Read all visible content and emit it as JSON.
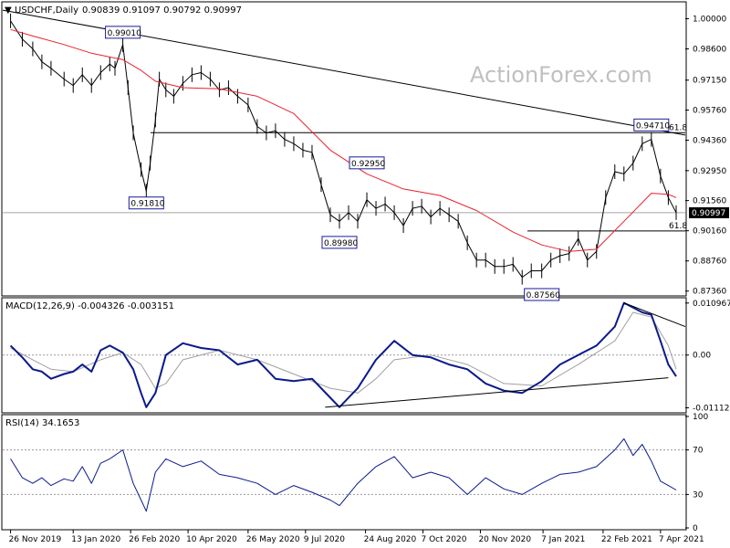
{
  "header": {
    "symbol": "USDCHF,Daily",
    "ohlc": "0.90839 0.91097 0.90792 0.90997"
  },
  "watermark": "ActionForex.com",
  "colors": {
    "price": "#000000",
    "ma": "#e8212e",
    "macd": "#0a1a8c",
    "signal": "#a0a0a0",
    "label_box": "#1a1a9c",
    "grid_dash": "#999999",
    "current_price_bg": "#000000",
    "current_price_fg": "#ffffff"
  },
  "chart_data": [
    {
      "type": "line",
      "name": "price-panel",
      "yticks": [
        "1.00000",
        "0.98600",
        "0.97150",
        "0.95760",
        "0.94360",
        "0.92950",
        "0.91560",
        "0.90160",
        "0.88760",
        "0.87360"
      ],
      "ylim": [
        0.8722,
        1.007
      ],
      "current_price": "0.90997",
      "xticks": [
        "26 Nov 2019",
        "13 Jan 2020",
        "26 Feb 2020",
        "10 Apr 2020",
        "26 May 2020",
        "9 Jul 2020",
        "24 Aug 2020",
        "7 Oct 2020",
        "20 Nov 2020",
        "7 Jan 2021",
        "22 Feb 2021",
        "7 Apr 2021"
      ],
      "annotations": [
        {
          "label": "0.99010",
          "date": "2020-02-20",
          "value": 0.9901
        },
        {
          "label": "0.91810",
          "date": "2020-03-09",
          "value": 0.9181
        },
        {
          "label": "0.89980",
          "date": "2020-08-04",
          "value": 0.8998
        },
        {
          "label": "0.92950",
          "date": "2020-08-25",
          "value": 0.9295
        },
        {
          "label": "0.87560",
          "date": "2021-01-06",
          "value": 0.8756
        },
        {
          "label": "0.94710",
          "date": "2021-03-31",
          "value": 0.9471
        }
      ],
      "fib_labels": [
        "61.8",
        "61.8"
      ],
      "series": [
        {
          "dates": [
            "2019-11-26",
            "2019-12-05",
            "2019-12-13",
            "2019-12-20",
            "2019-12-27",
            "2020-01-06",
            "2020-01-13",
            "2020-01-20",
            "2020-01-27",
            "2020-02-03",
            "2020-02-10",
            "2020-02-14",
            "2020-02-20",
            "2020-02-24",
            "2020-02-28",
            "2020-03-05",
            "2020-03-09",
            "2020-03-12",
            "2020-03-16",
            "2020-03-19",
            "2020-03-24",
            "2020-03-30",
            "2020-04-06",
            "2020-04-13",
            "2020-04-20",
            "2020-04-27",
            "2020-05-04",
            "2020-05-11",
            "2020-05-18",
            "2020-05-26",
            "2020-06-02",
            "2020-06-09",
            "2020-06-16",
            "2020-06-23",
            "2020-06-30",
            "2020-07-07",
            "2020-07-14",
            "2020-07-21",
            "2020-07-28",
            "2020-08-04",
            "2020-08-11",
            "2020-08-18",
            "2020-08-25",
            "2020-09-01",
            "2020-09-08",
            "2020-09-15",
            "2020-09-22",
            "2020-09-29",
            "2020-10-06",
            "2020-10-13",
            "2020-10-20",
            "2020-10-27",
            "2020-11-03",
            "2020-11-10",
            "2020-11-17",
            "2020-11-24",
            "2020-12-01",
            "2020-12-08",
            "2020-12-15",
            "2020-12-22",
            "2020-12-29",
            "2021-01-06",
            "2021-01-13",
            "2021-01-20",
            "2021-01-27",
            "2021-02-03",
            "2021-02-10",
            "2021-02-17",
            "2021-02-24",
            "2021-03-03",
            "2021-03-10",
            "2021-03-17",
            "2021-03-24",
            "2021-03-31",
            "2021-04-07",
            "2021-04-13",
            "2021-04-19"
          ],
          "values": [
            0.999,
            0.9905,
            0.986,
            0.98,
            0.977,
            0.972,
            0.969,
            0.974,
            0.969,
            0.975,
            0.979,
            0.977,
            0.988,
            0.968,
            0.947,
            0.93,
            0.92,
            0.933,
            0.953,
            0.972,
            0.967,
            0.964,
            0.97,
            0.974,
            0.975,
            0.972,
            0.967,
            0.968,
            0.964,
            0.96,
            0.95,
            0.947,
            0.948,
            0.944,
            0.942,
            0.939,
            0.938,
            0.923,
            0.909,
            0.906,
            0.91,
            0.906,
            0.916,
            0.912,
            0.914,
            0.91,
            0.904,
            0.912,
            0.913,
            0.908,
            0.912,
            0.909,
            0.906,
            0.896,
            0.888,
            0.888,
            0.885,
            0.885,
            0.886,
            0.88,
            0.883,
            0.883,
            0.888,
            0.89,
            0.891,
            0.898,
            0.888,
            0.892,
            0.917,
            0.929,
            0.928,
            0.933,
            0.942,
            0.944,
            0.927,
            0.917,
            0.91
          ]
        },
        {
          "name": "",
          "dates": [
            "2019-11-26",
            "2019-12-13",
            "2020-01-06",
            "2020-01-27",
            "2020-02-20",
            "2020-03-05",
            "2020-03-16",
            "2020-04-06",
            "2020-05-04",
            "2020-06-02",
            "2020-06-30",
            "2020-07-28",
            "2020-08-25",
            "2020-09-22",
            "2020-10-20",
            "2020-11-17",
            "2020-12-15",
            "2021-01-06",
            "2021-01-27",
            "2021-02-17",
            "2021-03-10",
            "2021-03-31",
            "2021-04-13",
            "2021-04-19"
          ],
          "values": [
            0.995,
            0.992,
            0.988,
            0.984,
            0.981,
            0.976,
            0.971,
            0.968,
            0.9675,
            0.964,
            0.956,
            0.939,
            0.928,
            0.921,
            0.918,
            0.911,
            0.901,
            0.895,
            0.892,
            0.893,
            0.906,
            0.919,
            0.9185,
            0.917
          ]
        }
      ]
    },
    {
      "type": "line",
      "name": "macd-panel",
      "title": "MACD(12,26,9) -0.004326 -0.003151",
      "yticks": [
        "0.010967",
        "0.00",
        "-0.011127"
      ],
      "ylim": [
        -0.0118,
        0.0117
      ],
      "series": [
        {
          "dates": [
            "2019-11-26",
            "2019-12-05",
            "2019-12-13",
            "2019-12-20",
            "2019-12-27",
            "2020-01-06",
            "2020-01-13",
            "2020-01-20",
            "2020-01-27",
            "2020-02-03",
            "2020-02-10",
            "2020-02-20",
            "2020-02-28",
            "2020-03-05",
            "2020-03-09",
            "2020-03-16",
            "2020-03-24",
            "2020-04-06",
            "2020-04-20",
            "2020-05-04",
            "2020-05-18",
            "2020-06-02",
            "2020-06-16",
            "2020-06-30",
            "2020-07-14",
            "2020-07-28",
            "2020-08-04",
            "2020-08-18",
            "2020-09-01",
            "2020-09-15",
            "2020-09-29",
            "2020-10-13",
            "2020-10-27",
            "2020-11-10",
            "2020-11-24",
            "2020-12-08",
            "2020-12-22",
            "2021-01-06",
            "2021-01-20",
            "2021-02-03",
            "2021-02-17",
            "2021-03-03",
            "2021-03-10",
            "2021-03-17",
            "2021-03-24",
            "2021-03-31",
            "2021-04-07",
            "2021-04-13",
            "2021-04-19"
          ],
          "values": [
            0.002,
            -0.0005,
            -0.003,
            -0.0035,
            -0.005,
            -0.004,
            -0.0035,
            -0.002,
            -0.0035,
            0.001,
            0.002,
            0.0005,
            -0.003,
            -0.008,
            -0.011,
            -0.008,
            0.0,
            0.0025,
            0.0015,
            0.001,
            -0.002,
            -0.001,
            -0.005,
            -0.0055,
            -0.005,
            -0.009,
            -0.011,
            -0.007,
            -0.001,
            0.003,
            0.0,
            -0.0005,
            -0.002,
            -0.003,
            -0.006,
            -0.0075,
            -0.008,
            -0.0055,
            -0.002,
            0.0,
            0.002,
            0.006,
            0.011,
            0.01,
            0.009,
            0.0085,
            0.003,
            -0.002,
            -0.0045
          ]
        },
        {
          "name": "",
          "dates": [
            "2019-11-26",
            "2019-12-13",
            "2019-12-27",
            "2020-01-13",
            "2020-02-03",
            "2020-02-20",
            "2020-03-05",
            "2020-03-16",
            "2020-03-24",
            "2020-04-06",
            "2020-05-04",
            "2020-06-02",
            "2020-06-30",
            "2020-07-28",
            "2020-08-18",
            "2020-09-01",
            "2020-09-15",
            "2020-10-13",
            "2020-11-10",
            "2020-12-08",
            "2021-01-06",
            "2021-02-03",
            "2021-03-03",
            "2021-03-17",
            "2021-03-31",
            "2021-04-13",
            "2021-04-19"
          ],
          "values": [
            0.0015,
            -0.001,
            -0.003,
            -0.0035,
            -0.001,
            0.0005,
            -0.002,
            -0.007,
            -0.006,
            -0.001,
            0.001,
            -0.001,
            -0.004,
            -0.007,
            -0.008,
            -0.005,
            -0.001,
            0.0,
            -0.002,
            -0.006,
            -0.0065,
            -0.002,
            0.003,
            0.009,
            0.008,
            0.002,
            -0.003
          ]
        }
      ]
    },
    {
      "type": "line",
      "name": "rsi-panel",
      "title": "RSI(14) 34.1653",
      "yticks": [
        "100",
        "70",
        "30",
        "0"
      ],
      "ylim": [
        0,
        100
      ],
      "series": [
        {
          "dates": [
            "2019-11-26",
            "2019-12-05",
            "2019-12-13",
            "2019-12-20",
            "2019-12-27",
            "2020-01-06",
            "2020-01-13",
            "2020-01-20",
            "2020-01-27",
            "2020-02-03",
            "2020-02-10",
            "2020-02-20",
            "2020-02-28",
            "2020-03-05",
            "2020-03-09",
            "2020-03-16",
            "2020-03-24",
            "2020-04-06",
            "2020-04-20",
            "2020-05-04",
            "2020-05-18",
            "2020-06-02",
            "2020-06-16",
            "2020-06-30",
            "2020-07-14",
            "2020-07-28",
            "2020-08-04",
            "2020-08-18",
            "2020-09-01",
            "2020-09-15",
            "2020-09-29",
            "2020-10-13",
            "2020-10-27",
            "2020-11-10",
            "2020-11-24",
            "2020-12-08",
            "2020-12-22",
            "2021-01-06",
            "2021-01-20",
            "2021-02-03",
            "2021-02-17",
            "2021-03-03",
            "2021-03-10",
            "2021-03-17",
            "2021-03-24",
            "2021-03-31",
            "2021-04-07",
            "2021-04-13",
            "2021-04-19"
          ],
          "values": [
            62,
            45,
            40,
            45,
            38,
            44,
            42,
            55,
            40,
            58,
            62,
            70,
            40,
            25,
            15,
            50,
            62,
            55,
            60,
            48,
            45,
            40,
            30,
            38,
            32,
            25,
            20,
            40,
            55,
            64,
            45,
            50,
            45,
            30,
            45,
            35,
            30,
            40,
            48,
            50,
            55,
            70,
            80,
            65,
            75,
            60,
            42,
            38,
            34
          ]
        }
      ]
    }
  ]
}
